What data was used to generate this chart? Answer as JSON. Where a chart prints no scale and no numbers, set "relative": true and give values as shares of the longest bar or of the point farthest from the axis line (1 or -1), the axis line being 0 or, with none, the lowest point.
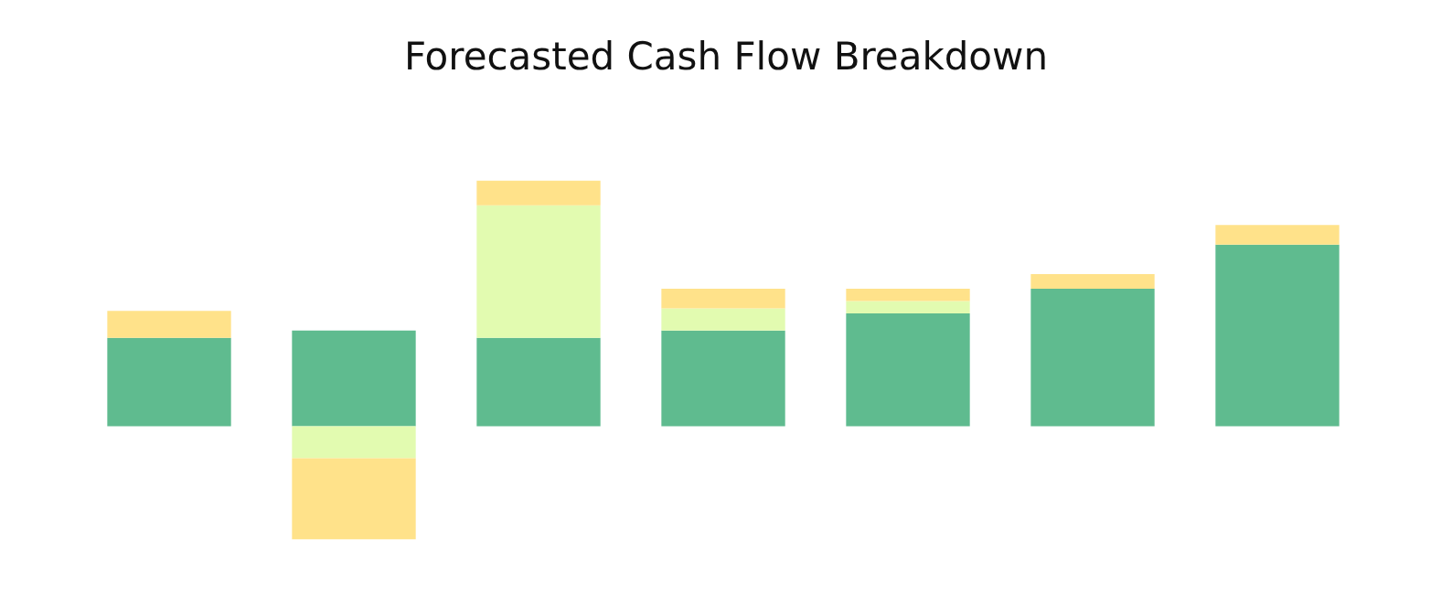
{
  "chart_data": {
    "type": "bar",
    "title": "Forecasted Cash Flow Breakdown",
    "relative": true,
    "stacked": true,
    "categories": [
      null,
      null,
      null,
      null,
      null,
      null,
      null
    ],
    "series": [
      {
        "color": "#5fbb8f",
        "values": [
          0.36,
          0.39,
          0.36,
          0.39,
          0.46,
          0.56,
          0.74
        ]
      },
      {
        "color": "#e2fbb0",
        "values": [
          0,
          -0.13,
          0.54,
          0.09,
          0.05,
          0,
          0
        ]
      },
      {
        "color": "#ffe28a",
        "values": [
          0.11,
          -0.33,
          0.1,
          0.08,
          0.05,
          0.06,
          0.08
        ]
      }
    ]
  }
}
